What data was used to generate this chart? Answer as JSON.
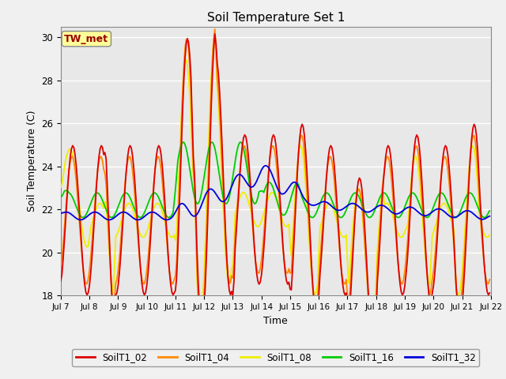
{
  "title": "Soil Temperature Set 1",
  "xlabel": "Time",
  "ylabel": "Soil Temperature (C)",
  "annotation": "TW_met",
  "ylim": [
    18,
    30.5
  ],
  "xlim": [
    0,
    360
  ],
  "bg_outer": "#f0f0f0",
  "bg_inner": "#e8e8e8",
  "series_colors": {
    "SoilT1_02": "#dd0000",
    "SoilT1_04": "#ff8800",
    "SoilT1_08": "#eeee00",
    "SoilT1_16": "#00cc00",
    "SoilT1_32": "#0000dd"
  },
  "x_tick_labels": [
    "Jul 7",
    "Jul 8",
    "Jul 9",
    "Jul 10",
    "Jul 11",
    "Jul 12",
    "Jul 13",
    "Jul 14",
    "Jul 15",
    "Jul 16",
    "Jul 17",
    "Jul 18",
    "Jul 19",
    "Jul 20",
    "Jul 21",
    "Jul 22"
  ],
  "x_tick_positions": [
    0,
    24,
    48,
    72,
    96,
    120,
    144,
    168,
    192,
    216,
    240,
    264,
    288,
    312,
    336,
    360
  ],
  "yticks": [
    18,
    20,
    22,
    24,
    26,
    28,
    30
  ],
  "linewidth": 1.3
}
